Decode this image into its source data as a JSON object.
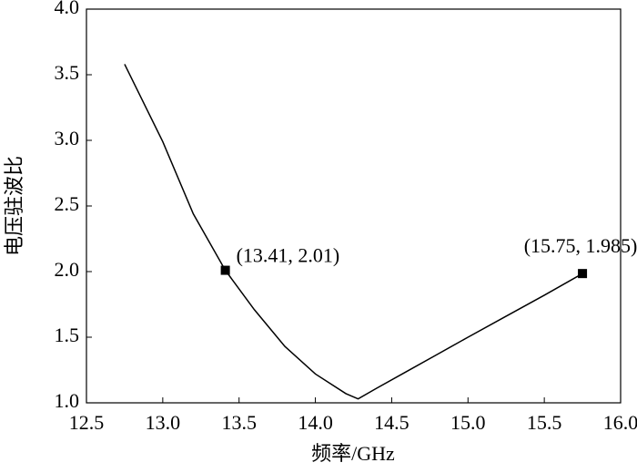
{
  "chart_data": {
    "type": "line",
    "xlabel": "频率/GHz",
    "ylabel": "电压驻波比",
    "xlim": [
      12.5,
      16.0
    ],
    "ylim": [
      1.0,
      4.0
    ],
    "xticks": [
      12.5,
      {
        "value": 13,
        "label": "13.0"
      },
      13.5,
      {
        "value": 14,
        "label": "14.0"
      },
      14.5,
      {
        "value": 15,
        "label": "15.0"
      },
      15.5,
      {
        "value": 16,
        "label": "16.0"
      }
    ],
    "yticks": [
      {
        "value": 1,
        "label": "1.0"
      },
      1.5,
      {
        "value": 2,
        "label": "2.0"
      },
      2.5,
      {
        "value": 3,
        "label": "3.0"
      },
      3.5,
      {
        "value": 4,
        "label": "4.0"
      }
    ],
    "series": [
      {
        "color": "#000000",
        "x": [
          12.75,
          13.0,
          13.2,
          13.41,
          13.6,
          13.8,
          14.0,
          14.2,
          14.28,
          14.4,
          14.6,
          14.8,
          15.0,
          15.25,
          15.5,
          15.75
        ],
        "values": [
          3.58,
          2.99,
          2.44,
          2.01,
          1.71,
          1.43,
          1.22,
          1.07,
          1.03,
          1.11,
          1.24,
          1.37,
          1.5,
          1.66,
          1.82,
          1.985
        ]
      }
    ],
    "markers": {
      "color": "#000000",
      "x": [
        13.41,
        15.75
      ],
      "values": [
        2.01,
        1.985
      ]
    },
    "annotations": [
      "(13.41, 2.01)",
      "(15.75, 1.985)"
    ]
  }
}
